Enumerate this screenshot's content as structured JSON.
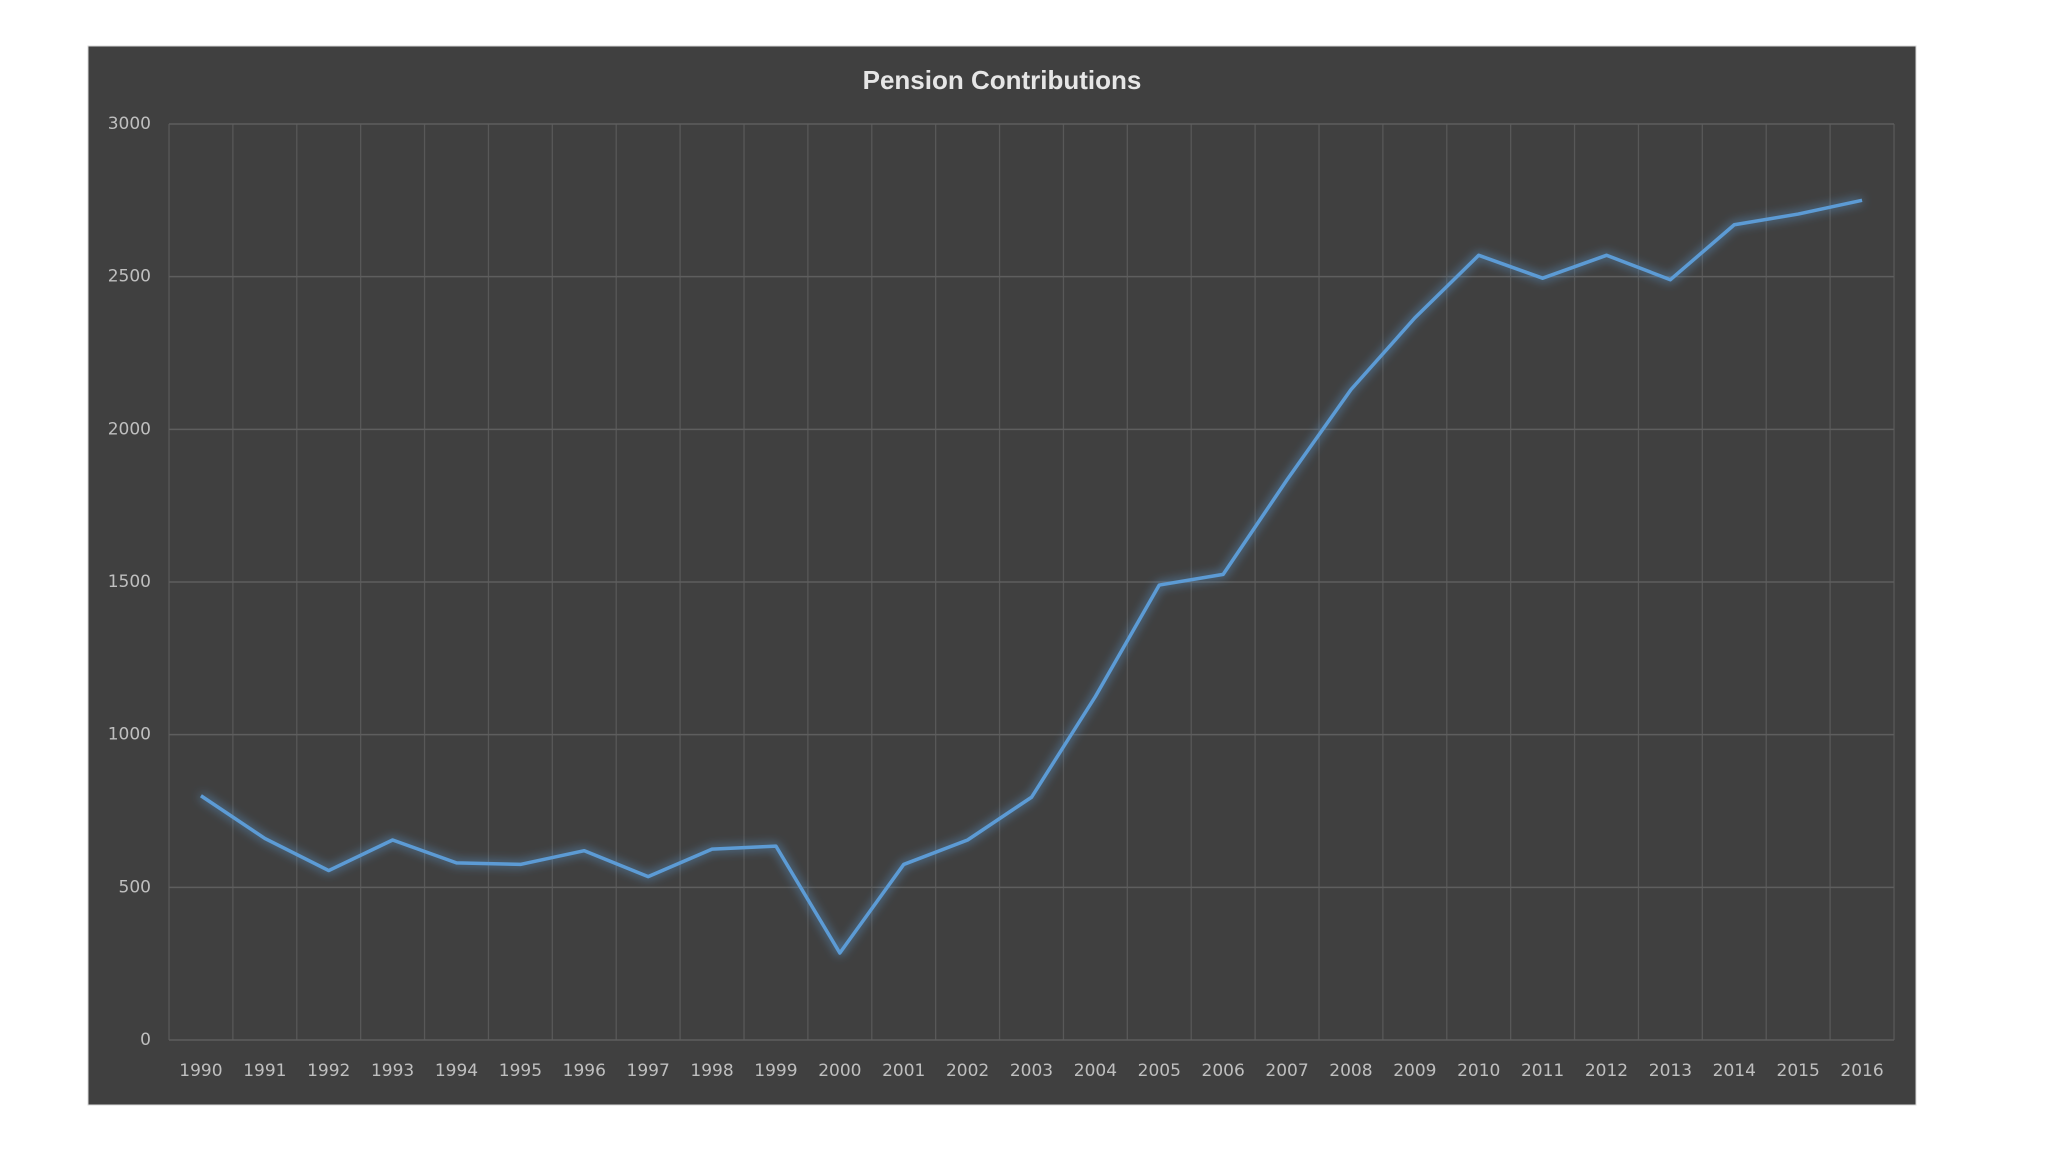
{
  "chart_data": {
    "type": "line",
    "title": "Pension Contributions",
    "categories": [
      "1990",
      "1991",
      "1992",
      "1993",
      "1994",
      "1995",
      "1996",
      "1997",
      "1998",
      "1999",
      "2000",
      "2001",
      "2002",
      "2003",
      "2004",
      "2005",
      "2006",
      "2007",
      "2008",
      "2009",
      "2010",
      "2011",
      "2012",
      "2013",
      "2014",
      "2015",
      "2016"
    ],
    "values": [
      800,
      660,
      555,
      655,
      580,
      575,
      620,
      535,
      625,
      635,
      285,
      575,
      655,
      795,
      1125,
      1490,
      1525,
      1835,
      2130,
      2365,
      2570,
      2495,
      2570,
      2490,
      2670,
      2705,
      2750
    ],
    "color": "#5b9bd5",
    "ylim": [
      0,
      3000
    ],
    "yticks": [
      0,
      500,
      1000,
      1500,
      2000,
      2500,
      3000
    ],
    "grid": true
  }
}
